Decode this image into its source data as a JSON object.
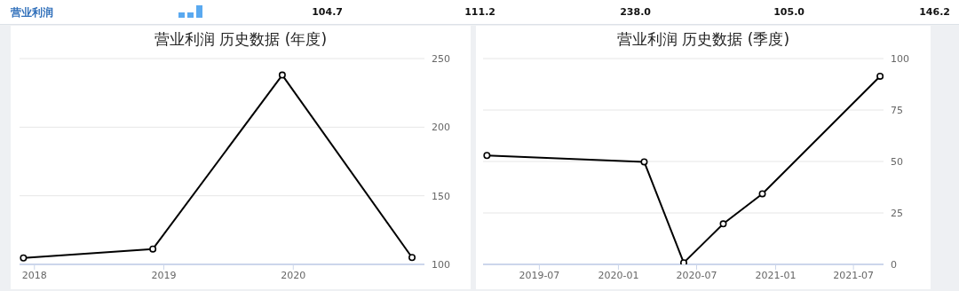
{
  "chart_data": [
    {
      "type": "other",
      "title": "营业利润",
      "annotations": [
        "104.7",
        "111.2",
        "238.0",
        "105.0",
        "146.2"
      ]
    },
    {
      "type": "line",
      "title": "营业利润 历史数据 (年度)",
      "x": [
        "2017-12",
        "2018-12",
        "2019-12",
        "2020-12"
      ],
      "series": [
        {
          "color": "#000000",
          "values": [
            104.7,
            111.2,
            238.0,
            105.0
          ]
        }
      ],
      "xlim": [
        "2017-11-20",
        "2021-01-05"
      ],
      "xticks": [
        "2018",
        "2019",
        "2020"
      ],
      "ylim": [
        100,
        250
      ],
      "yticks": [
        100,
        150,
        200,
        250
      ],
      "grid": "y",
      "marker": "circle",
      "line_style": "solid"
    },
    {
      "type": "line",
      "title": "营业利润 历史数据 (季度)",
      "x": [
        "2019-03",
        "2020-03",
        "2020-06",
        "2020-09",
        "2020-12",
        "2021-09"
      ],
      "series": [
        {
          "color": "#000000",
          "values": [
            52.9,
            49.8,
            0.8,
            19.7,
            34.3,
            91.4
          ]
        }
      ],
      "xlim": [
        "2019-02-20",
        "2021-09-09"
      ],
      "xticks": [
        "2019-07",
        "2020-01",
        "2020-07",
        "2021-01",
        "2021-07"
      ],
      "ylim": [
        0,
        100
      ],
      "yticks": [
        0,
        25,
        50,
        75,
        100
      ],
      "grid": "y",
      "marker": "circle",
      "line_style": "solid"
    }
  ]
}
